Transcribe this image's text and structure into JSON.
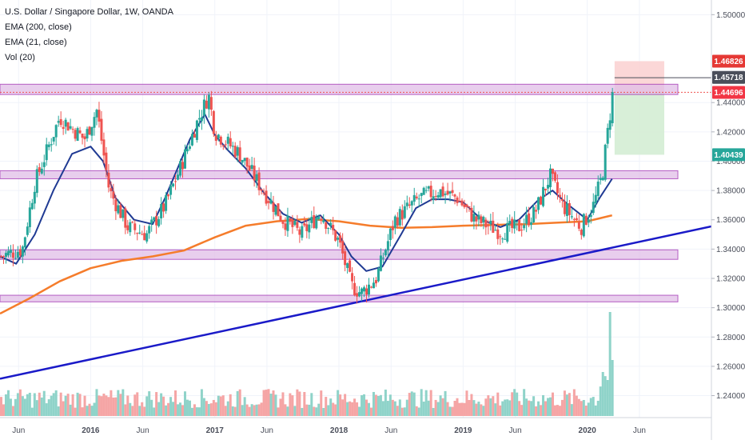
{
  "window": {
    "symbol_title": "U.S. Dollar / Singapore Dollar, 1W, OANDA"
  },
  "indicators": [
    {
      "label": "EMA (200, close)",
      "color": "#f57c2b"
    },
    {
      "label": "EMA (21, close)",
      "color": "#1f3a93"
    },
    {
      "label": "Vol (20)",
      "color": "#26a69a"
    }
  ],
  "price_labels": [
    {
      "value": "1.46826",
      "color": "#e53935",
      "text_color": "#ffffff"
    },
    {
      "value": "1.45718",
      "color": "#4a4e5a",
      "text_color": "#ffffff"
    },
    {
      "value": "1.44696",
      "color": "#f23645",
      "text_color": "#ffffff"
    },
    {
      "value": "1.40439",
      "color": "#26a69a",
      "text_color": "#ffffff"
    }
  ],
  "colors": {
    "up": "#26a69a",
    "down": "#ef5350",
    "zone_fill": "#e1bee7",
    "zone_stroke": "#9c27b0",
    "trendline": "#1a1ac8",
    "ema200": "#f57c2b",
    "ema21": "#1f3a93",
    "profit_zone": "#d4edd4",
    "loss_zone": "#fbd3d3"
  },
  "chart_data": {
    "type": "candlestick",
    "title": "U.S. Dollar / Singapore Dollar, 1W, OANDA",
    "y_ticks": [
      "1.24000",
      "1.26000",
      "1.28000",
      "1.30000",
      "1.32000",
      "1.34000",
      "1.36000",
      "1.38000",
      "1.40000",
      "1.42000",
      "1.44000",
      "1.50000"
    ],
    "ylim": [
      1.225,
      1.51
    ],
    "x_ticks": [
      "Jun",
      "2016",
      "Jun",
      "2017",
      "Jun",
      "2018",
      "Jun",
      "2019",
      "Jun",
      "2020",
      "Jun"
    ],
    "x_tick_times": [
      2015.42,
      2016.0,
      2016.42,
      2017.0,
      2017.42,
      2018.0,
      2018.42,
      2019.0,
      2019.42,
      2020.0,
      2020.42
    ],
    "xlim": [
      2015.27,
      2021.0
    ],
    "horizontal_zones": [
      {
        "low": 1.4455,
        "high": 1.4525
      },
      {
        "low": 1.388,
        "high": 1.3935
      },
      {
        "low": 1.333,
        "high": 1.3395
      },
      {
        "low": 1.304,
        "high": 1.3085
      }
    ],
    "trendline": {
      "start": [
        2015.27,
        1.2515
      ],
      "end": [
        2021.0,
        1.3555
      ]
    },
    "price_lines": [
      1.457,
      1.447
    ],
    "position": {
      "entry": 1.44696,
      "stop": 1.46826,
      "target": 1.40439,
      "start_time": 2020.22,
      "end_time": 2020.62
    },
    "series": [
      {
        "name": "EMA (200, close)",
        "x": [
          2015.27,
          2015.5,
          2015.75,
          2016.0,
          2016.25,
          2016.5,
          2016.75,
          2017.0,
          2017.25,
          2017.5,
          2017.75,
          2018.0,
          2018.25,
          2018.5,
          2018.75,
          2019.0,
          2019.25,
          2019.5,
          2019.75,
          2020.0,
          2020.2
        ],
        "y": [
          1.296,
          1.306,
          1.318,
          1.327,
          1.332,
          1.335,
          1.339,
          1.348,
          1.356,
          1.359,
          1.3605,
          1.359,
          1.356,
          1.3545,
          1.355,
          1.356,
          1.3565,
          1.357,
          1.358,
          1.359,
          1.363
        ]
      },
      {
        "name": "EMA (21, close)",
        "x": [
          2015.27,
          2015.4,
          2015.55,
          2015.7,
          2015.85,
          2016.0,
          2016.1,
          2016.2,
          2016.35,
          2016.5,
          2016.6,
          2016.7,
          2016.8,
          2016.92,
          2017.0,
          2017.1,
          2017.25,
          2017.4,
          2017.55,
          2017.7,
          2017.85,
          2018.0,
          2018.1,
          2018.22,
          2018.35,
          2018.5,
          2018.62,
          2018.75,
          2018.88,
          2019.0,
          2019.15,
          2019.3,
          2019.45,
          2019.6,
          2019.72,
          2019.85,
          2020.0,
          2020.1,
          2020.2
        ],
        "y": [
          1.335,
          1.33,
          1.35,
          1.38,
          1.405,
          1.41,
          1.4,
          1.375,
          1.36,
          1.357,
          1.375,
          1.395,
          1.415,
          1.432,
          1.418,
          1.408,
          1.395,
          1.378,
          1.364,
          1.358,
          1.363,
          1.35,
          1.335,
          1.325,
          1.328,
          1.35,
          1.368,
          1.374,
          1.374,
          1.372,
          1.36,
          1.355,
          1.36,
          1.373,
          1.38,
          1.37,
          1.36,
          1.375,
          1.388
        ]
      }
    ],
    "candle_path": {
      "x": [
        2015.27,
        2015.45,
        2015.55,
        2015.75,
        2015.95,
        2016.05,
        2016.15,
        2016.3,
        2016.45,
        2016.6,
        2016.72,
        2016.85,
        2016.95,
        2017.0,
        2017.2,
        2017.35,
        2017.55,
        2017.7,
        2017.85,
        2018.0,
        2018.1,
        2018.18,
        2018.3,
        2018.45,
        2018.65,
        2018.8,
        2018.95,
        2019.1,
        2019.3,
        2019.45,
        2019.58,
        2019.7,
        2019.8,
        2019.95,
        2020.05,
        2020.12,
        2020.18,
        2020.21
      ],
      "y": [
        1.335,
        1.34,
        1.385,
        1.43,
        1.415,
        1.435,
        1.38,
        1.355,
        1.35,
        1.37,
        1.395,
        1.425,
        1.445,
        1.42,
        1.405,
        1.385,
        1.36,
        1.35,
        1.365,
        1.345,
        1.315,
        1.31,
        1.32,
        1.36,
        1.375,
        1.38,
        1.375,
        1.36,
        1.352,
        1.355,
        1.365,
        1.39,
        1.37,
        1.355,
        1.37,
        1.39,
        1.43,
        1.45
      ]
    },
    "volume_ticks": [
      "1.24000",
      "1.26000",
      "1.28000"
    ]
  }
}
